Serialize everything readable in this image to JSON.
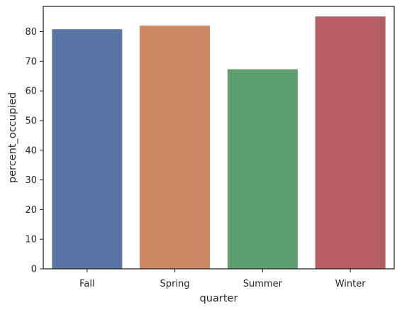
{
  "chart_data": {
    "type": "bar",
    "title": "",
    "xlabel": "quarter",
    "ylabel": "percent_occupied",
    "categories": [
      "Fall",
      "Spring",
      "Summer",
      "Winter"
    ],
    "values": [
      80.8,
      82.0,
      67.3,
      85.1
    ],
    "colors": [
      "#5875a4",
      "#cc8963",
      "#5f9e6e",
      "#b55d60"
    ],
    "ylim": [
      0,
      88.5
    ],
    "yticks": [
      "0",
      "10",
      "20",
      "30",
      "40",
      "50",
      "60",
      "70",
      "80"
    ],
    "grid": false,
    "legend": "none"
  }
}
